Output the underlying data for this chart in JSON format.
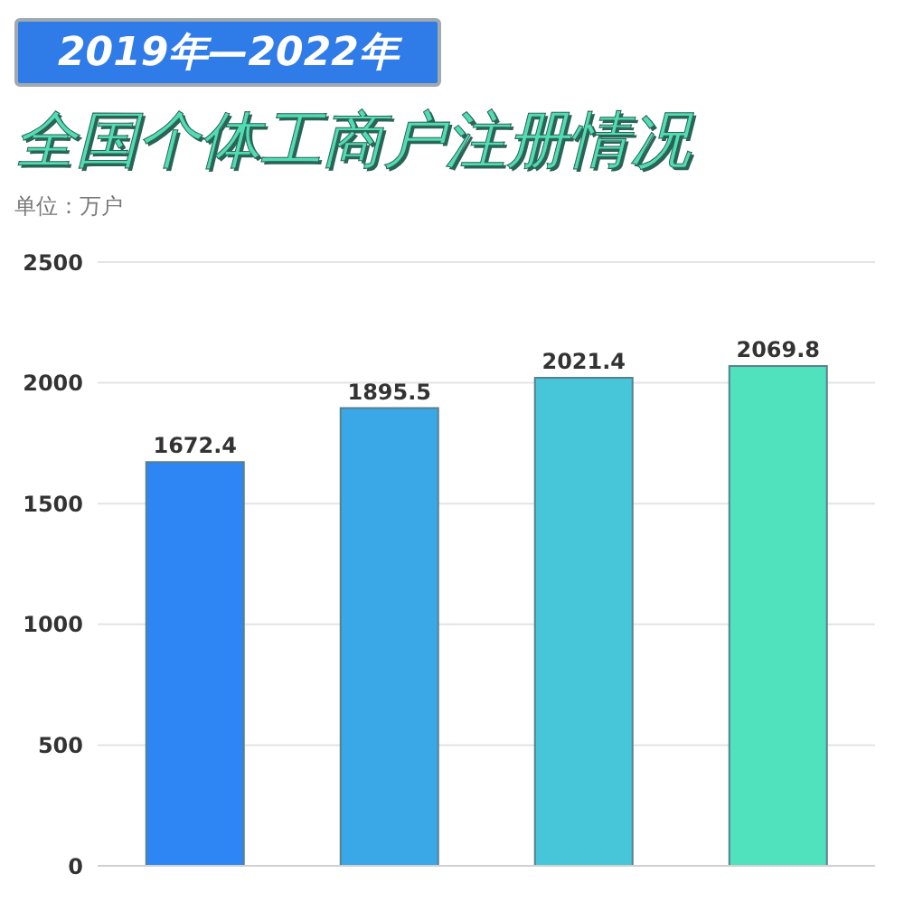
{
  "chart_data": {
    "type": "bar",
    "subtitle": "2019年—2022年",
    "title": "全国个体工商户注册情况",
    "ylabel": "单位：万户",
    "categories": [
      null,
      null,
      null,
      null
    ],
    "values": [
      1672.4,
      1895.5,
      2021.4,
      2069.8
    ],
    "colors": [
      "#2e86f5",
      "#3aa8e6",
      "#46c6d8",
      "#4fe2bd"
    ],
    "ylim": [
      0,
      2500
    ],
    "yticks": [
      0,
      500,
      1000,
      1500,
      2000,
      2500
    ],
    "grid": "y",
    "data_labels": true
  }
}
